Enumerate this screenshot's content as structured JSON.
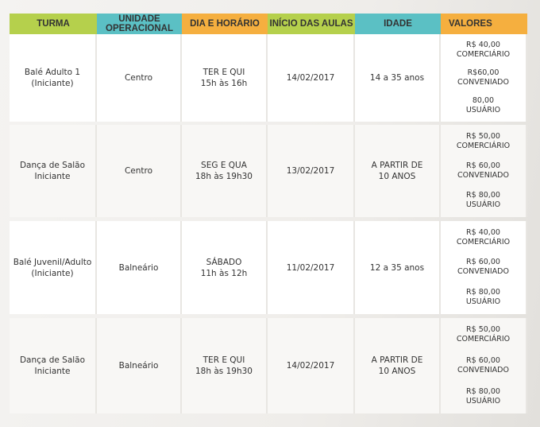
{
  "colors": {
    "green": "#b5d04c",
    "teal": "#5bc0c4",
    "orange": "#f5af3f"
  },
  "headers": [
    "TURMA",
    "UNIDADE OPERACIONAL",
    "DIA E HORÁRIO",
    "INÍCIO DAS AULAS",
    "IDADE",
    "VALORES"
  ],
  "rows": [
    {
      "turma": [
        "Balé Adulto 1",
        "(Iniciante)"
      ],
      "unidade": "Centro",
      "horario": [
        "TER E QUI",
        "15h às 16h"
      ],
      "inicio": "14/02/2017",
      "idade": [
        "14 a 35 anos"
      ],
      "valores": [
        [
          "R$ 40,00",
          "COMERCIÁRIO"
        ],
        [
          "R$60,00",
          "CONVENIADO"
        ],
        [
          "80,00",
          "USUÁRIO"
        ]
      ]
    },
    {
      "turma": [
        "Dança de Salão",
        "Iniciante"
      ],
      "unidade": "Centro",
      "horario": [
        "SEG E QUA",
        "18h às 19h30"
      ],
      "inicio": "13/02/2017",
      "idade": [
        "A PARTIR DE",
        "10 ANOS"
      ],
      "valores": [
        [
          "R$ 50,00",
          "COMERCIÁRIO"
        ],
        [
          "R$ 60,00",
          "CONVENIADO"
        ],
        [
          "R$ 80,00",
          "USUÁRIO"
        ]
      ]
    },
    {
      "turma": [
        "Balé Juvenil/Adulto",
        "(Iniciante)"
      ],
      "unidade": "Balneário",
      "horario": [
        "SÁBADO",
        "11h às 12h"
      ],
      "inicio": "11/02/2017",
      "idade": [
        "12 a 35 anos"
      ],
      "valores": [
        [
          "R$ 40,00",
          "COMERCIÁRIO"
        ],
        [
          "R$ 60,00",
          "CONVENIADO"
        ],
        [
          "R$ 80,00",
          "USUÁRIO"
        ]
      ]
    },
    {
      "turma": [
        "Dança de Salão",
        "Iniciante"
      ],
      "unidade": "Balneário",
      "horario": [
        "TER E QUI",
        "18h às 19h30"
      ],
      "inicio": "14/02/2017",
      "idade": [
        "A PARTIR DE",
        "10 ANOS"
      ],
      "valores": [
        [
          "R$ 50,00",
          "COMERCIÁRIO"
        ],
        [
          "R$ 60,00",
          "CONVENIADO"
        ],
        [
          "R$ 80,00",
          "USUÁRIO"
        ]
      ]
    }
  ]
}
